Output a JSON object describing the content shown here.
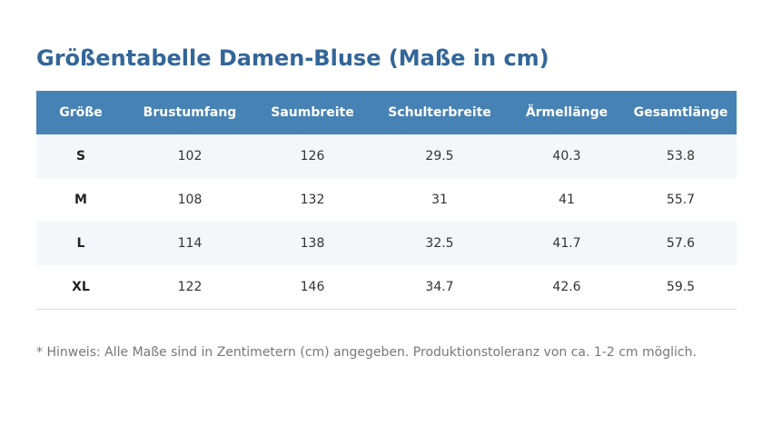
{
  "title": "Größentabelle Damen-Bluse (Maße in cm)",
  "table": {
    "headers": [
      "Größe",
      "Brustumfang",
      "Saumbreite",
      "Schulterbreite",
      "Ärmellänge",
      "Gesamtlänge"
    ],
    "rows": [
      [
        "S",
        "102",
        "126",
        "29.5",
        "40.3",
        "53.8"
      ],
      [
        "M",
        "108",
        "132",
        "31",
        "41",
        "55.7"
      ],
      [
        "L",
        "114",
        "138",
        "32.5",
        "41.7",
        "57.6"
      ],
      [
        "XL",
        "122",
        "146",
        "34.7",
        "42.6",
        "59.5"
      ]
    ]
  },
  "note": "* Hinweis: Alle Maße sind in Zentimetern (cm) angegeben. Produktionstoleranz von ca. 1-2 cm möglich.",
  "colors": {
    "title": "#336699",
    "header_bg": "#4682b4",
    "stripe_bg": "#f3f7fa"
  }
}
